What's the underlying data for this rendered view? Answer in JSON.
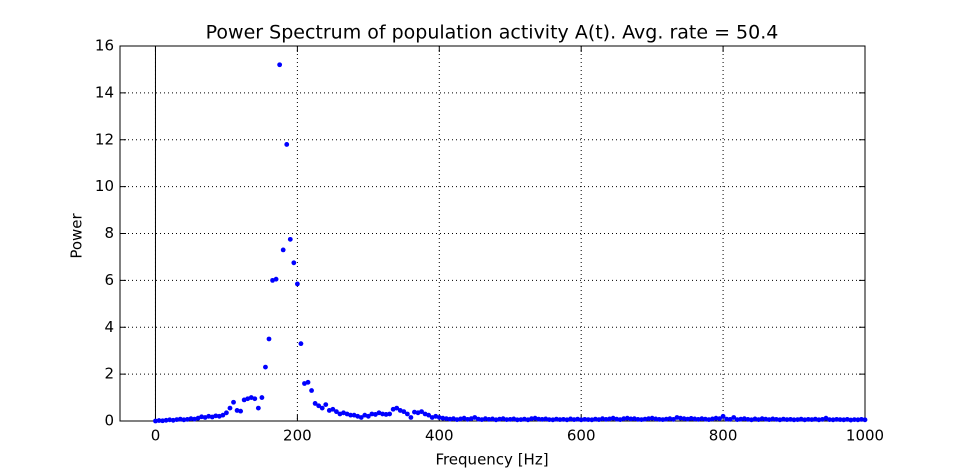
{
  "chart_data": {
    "type": "scatter",
    "title": "Power Spectrum of population activity A(t). Avg. rate = 50.4",
    "x_label": "Frequency [Hz]",
    "y_label": "Power",
    "xlim": [
      -50,
      1000
    ],
    "xticks": [
      0,
      200,
      400,
      600,
      800,
      1000
    ],
    "ylim": [
      0,
      16
    ],
    "yticks": [
      0,
      2,
      4,
      6,
      8,
      10,
      12,
      14,
      16
    ],
    "grid": true,
    "series": [
      {
        "color": "#0000ff",
        "x": [
          0,
          5,
          10,
          15,
          20,
          25,
          30,
          35,
          40,
          45,
          50,
          55,
          60,
          65,
          70,
          75,
          80,
          85,
          90,
          95,
          100,
          105,
          110,
          115,
          120,
          125,
          130,
          135,
          140,
          145,
          150,
          155,
          160,
          165,
          170,
          175,
          180,
          185,
          190,
          195,
          200,
          205,
          210,
          215,
          220,
          225,
          230,
          235,
          240,
          245,
          250,
          255,
          260,
          265,
          270,
          275,
          280,
          285,
          290,
          295,
          300,
          305,
          310,
          315,
          320,
          325,
          330,
          335,
          340,
          345,
          350,
          355,
          360,
          365,
          370,
          375,
          380,
          385,
          390,
          395,
          400,
          405,
          410,
          415,
          420,
          425,
          430,
          435,
          440,
          445,
          450,
          455,
          460,
          465,
          470,
          475,
          480,
          485,
          490,
          495,
          500,
          505,
          510,
          515,
          520,
          525,
          530,
          535,
          540,
          545,
          550,
          555,
          560,
          565,
          570,
          575,
          580,
          585,
          590,
          595,
          600,
          605,
          610,
          615,
          620,
          625,
          630,
          635,
          640,
          645,
          650,
          655,
          660,
          665,
          670,
          675,
          680,
          685,
          690,
          695,
          700,
          705,
          710,
          715,
          720,
          725,
          730,
          735,
          740,
          745,
          750,
          755,
          760,
          765,
          770,
          775,
          780,
          785,
          790,
          795,
          800,
          805,
          810,
          815,
          820,
          825,
          830,
          835,
          840,
          845,
          850,
          855,
          860,
          865,
          870,
          875,
          880,
          885,
          890,
          895,
          900,
          905,
          910,
          915,
          920,
          925,
          930,
          935,
          940,
          945,
          950,
          955,
          960,
          965,
          970,
          975,
          980,
          985,
          990,
          995,
          1000
        ],
        "values": [
          0,
          0.02,
          0.01,
          0.03,
          0.05,
          0.03,
          0.06,
          0.08,
          0.05,
          0.07,
          0.1,
          0.08,
          0.12,
          0.18,
          0.15,
          0.2,
          0.17,
          0.22,
          0.2,
          0.25,
          0.35,
          0.55,
          0.8,
          0.45,
          0.42,
          0.9,
          0.95,
          1.0,
          0.95,
          0.55,
          1.0,
          2.3,
          3.5,
          6.0,
          6.05,
          15.2,
          7.3,
          11.8,
          7.75,
          6.75,
          5.85,
          3.3,
          1.6,
          1.65,
          1.3,
          0.75,
          0.65,
          0.55,
          0.7,
          0.45,
          0.5,
          0.4,
          0.3,
          0.35,
          0.3,
          0.25,
          0.25,
          0.2,
          0.15,
          0.25,
          0.2,
          0.3,
          0.28,
          0.35,
          0.3,
          0.28,
          0.3,
          0.5,
          0.55,
          0.45,
          0.4,
          0.3,
          0.15,
          0.38,
          0.35,
          0.4,
          0.3,
          0.25,
          0.15,
          0.2,
          0.15,
          0.12,
          0.1,
          0.08,
          0.1,
          0.06,
          0.09,
          0.12,
          0.07,
          0.1,
          0.15,
          0.08,
          0.06,
          0.1,
          0.07,
          0.09,
          0.05,
          0.08,
          0.1,
          0.06,
          0.07,
          0.09,
          0.05,
          0.06,
          0.08,
          0.05,
          0.1,
          0.12,
          0.08,
          0.07,
          0.09,
          0.06,
          0.05,
          0.08,
          0.06,
          0.07,
          0.05,
          0.09,
          0.06,
          0.08,
          0.05,
          0.07,
          0.06,
          0.05,
          0.08,
          0.06,
          0.1,
          0.07,
          0.09,
          0.12,
          0.08,
          0.06,
          0.1,
          0.12,
          0.09,
          0.1,
          0.07,
          0.06,
          0.08,
          0.1,
          0.12,
          0.09,
          0.07,
          0.06,
          0.08,
          0.1,
          0.07,
          0.15,
          0.12,
          0.1,
          0.08,
          0.11,
          0.09,
          0.07,
          0.1,
          0.08,
          0.06,
          0.09,
          0.12,
          0.1,
          0.2,
          0.08,
          0.07,
          0.15,
          0.06,
          0.08,
          0.1,
          0.07,
          0.05,
          0.09,
          0.06,
          0.1,
          0.08,
          0.06,
          0.09,
          0.07,
          0.05,
          0.08,
          0.06,
          0.07,
          0.05,
          0.06,
          0.08,
          0.05,
          0.07,
          0.06,
          0.08,
          0.05,
          0.07,
          0.12,
          0.06,
          0.05,
          0.07,
          0.06,
          0.05,
          0.07,
          0.04,
          0.06,
          0.05,
          0.07,
          0.05
        ]
      }
    ]
  }
}
